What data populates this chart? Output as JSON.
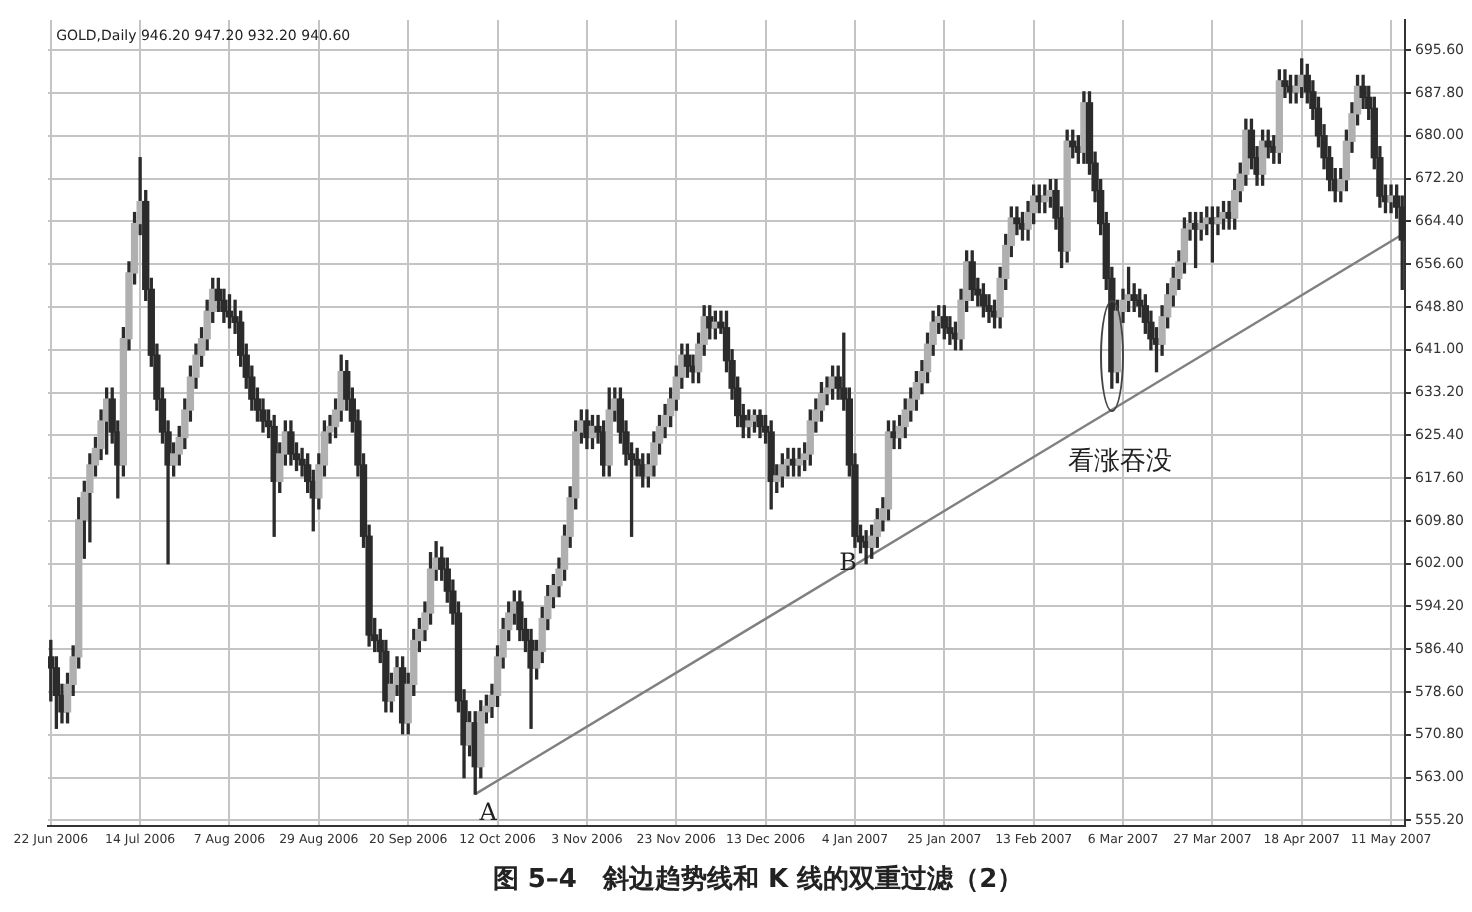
{
  "chart_data": {
    "type": "candlestick",
    "title": "图 5–4　斜边趋势线和 K 线的双重过滤（2）",
    "annotations": [
      "GOLD,Daily 946.20 947.20 932.20 940.60",
      "A",
      "B",
      "看涨吞没"
    ],
    "color": "#2b2b2b",
    "grid": true,
    "colors": [
      "#2b2b2b",
      "#2b2b2b",
      "#2b2b2b",
      "#b0b0b0",
      "#b0b0b0",
      "#b0b0b0",
      "#b0b0b0",
      "#b0b0b0",
      "#b0b0b0",
      "#b0b0b0",
      "#b0b0b0",
      "#2b2b2b",
      "#2b2b2b",
      "#b0b0b0",
      "#b0b0b0",
      "#b0b0b0",
      "#b0b0b0",
      "#2b2b2b",
      "#2b2b2b",
      "#2b2b2b",
      "#2b2b2b",
      "#2b2b2b",
      "#b0b0b0",
      "#b0b0b0",
      "#b0b0b0",
      "#b0b0b0",
      "#b0b0b0",
      "#b0b0b0",
      "#b0b0b0",
      "#b0b0b0",
      "#2b2b2b",
      "#2b2b2b",
      "#2b2b2b",
      "#2b2b2b",
      "#2b2b2b",
      "#2b2b2b",
      "#2b2b2b",
      "#2b2b2b",
      "#2b2b2b",
      "#2b2b2b",
      "#2b2b2b",
      "#b0b0b0",
      "#b0b0b0",
      "#2b2b2b",
      "#2b2b2b",
      "#2b2b2b",
      "#2b2b2b",
      "#2b2b2b",
      "#b0b0b0",
      "#b0b0b0",
      "#b0b0b0",
      "#b0b0b0",
      "#b0b0b0",
      "#2b2b2b",
      "#2b2b2b",
      "#2b2b2b",
      "#2b2b2b",
      "#2b2b2b",
      "#2b2b2b",
      "#2b2b2b",
      "#2b2b2b",
      "#b0b0b0",
      "#b0b0b0",
      "#2b2b2b",
      "#b0b0b0",
      "#b0b0b0",
      "#b0b0b0",
      "#b0b0b0",
      "#b0b0b0",
      "#b0b0b0",
      "#2b2b2b",
      "#2b2b2b",
      "#2b2b2b",
      "#2b2b2b",
      "#2b2b2b",
      "#b0b0b0",
      "#2b2b2b",
      "#b0b0b0",
      "#b0b0b0",
      "#b0b0b0",
      "#b0b0b0",
      "#b0b0b0",
      "#b0b0b0",
      "#b0b0b0",
      "#2b2b2b",
      "#2b2b2b",
      "#2b2b2b",
      "#b0b0b0",
      "#b0b0b0",
      "#b0b0b0",
      "#b0b0b0",
      "#b0b0b0",
      "#b0b0b0",
      "#b0b0b0",
      "#b0b0b0",
      "#b0b0b0",
      "#2b2b2b",
      "#b0b0b0",
      "#2b2b2b",
      "#2b2b2b",
      "#b0b0b0",
      "#b0b0b0",
      "#2b2b2b",
      "#2b2b2b",
      "#2b2b2b",
      "#2b2b2b",
      "#2b2b2b",
      "#b0b0b0",
      "#b0b0b0",
      "#b0b0b0",
      "#b0b0b0",
      "#b0b0b0",
      "#b0b0b0",
      "#b0b0b0",
      "#2b2b2b",
      "#2b2b2b",
      "#b0b0b0",
      "#b0b0b0",
      "#2b2b2b",
      "#b0b0b0",
      "#2b2b2b",
      "#2b2b2b",
      "#2b2b2b",
      "#2b2b2b",
      "#2b2b2b",
      "#b0b0b0",
      "#b0b0b0",
      "#2b2b2b",
      "#2b2b2b",
      "#2b2b2b",
      "#b0b0b0",
      "#b0b0b0",
      "#b0b0b0",
      "#2b2b2b",
      "#b0b0b0",
      "#b0b0b0",
      "#b0b0b0",
      "#b0b0b0",
      "#b0b0b0",
      "#b0b0b0",
      "#b0b0b0",
      "#2b2b2b",
      "#2b2b2b",
      "#2b2b2b",
      "#2b2b2b",
      "#2b2b2b",
      "#2b2b2b",
      "#b0b0b0",
      "#b0b0b0",
      "#b0b0b0",
      "#b0b0b0",
      "#2b2b2b",
      "#b0b0b0",
      "#b0b0b0",
      "#b0b0b0",
      "#b0b0b0",
      "#b0b0b0",
      "#b0b0b0",
      "#b0b0b0",
      "#b0b0b0",
      "#2b2b2b",
      "#2b2b2b",
      "#2b2b2b",
      "#b0b0b0",
      "#b0b0b0",
      "#2b2b2b",
      "#2b2b2b",
      "#2b2b2b",
      "#2b2b2b",
      "#2b2b2b",
      "#b0b0b0",
      "#b0b0b0",
      "#b0b0b0",
      "#2b2b2b",
      "#2b2b2b",
      "#b0b0b0",
      "#b0b0b0",
      "#2b2b2b",
      "#b0b0b0",
      "#b0b0b0",
      "#2b2b2b",
      "#2b2b2b",
      "#b0b0b0",
      "#2b2b2b",
      "#2b2b2b",
      "#b0b0b0",
      "#2b2b2b",
      "#2b2b2b",
      "#2b2b2b",
      "#2b2b2b",
      "#2b2b2b",
      "#b0b0b0",
      "#b0b0b0",
      "#b0b0b0",
      "#2b2b2b",
      "#2b2b2b",
      "#2b2b2b",
      "#2b2b2b",
      "#2b2b2b",
      "#b0b0b0",
      "#b0b0b0",
      "#b0b0b0",
      "#b0b0b0",
      "#b0b0b0",
      "#b0b0b0",
      "#2b2b2b",
      "#b0b0b0",
      "#b0b0b0",
      "#2b2b2b",
      "#b0b0b0",
      "#b0b0b0",
      "#2b2b2b",
      "#b0b0b0",
      "#b0b0b0",
      "#b0b0b0",
      "#2b2b2b",
      "#2b2b2b",
      "#b0b0b0",
      "#2b2b2b",
      "#2b2b2b",
      "#b0b0b0",
      "#2b2b2b",
      "#2b2b2b",
      "#b0b0b0",
      "#b0b0b0",
      "#2b2b2b",
      "#2b2b2b",
      "#2b2b2b",
      "#2b2b2b",
      "#2b2b2b",
      "#2b2b2b",
      "#b0b0b0",
      "#b0b0b0",
      "#b0b0b0",
      "#b0b0b0",
      "#2b2b2b",
      "#2b2b2b",
      "#2b2b2b",
      "#2b2b2b",
      "#2b2b2b",
      "#b0b0b0",
      "#2b2b2b",
      "#2b2b2b"
    ],
    "ylim": [
      554.2,
      701.1
    ],
    "yticks": [
      {
        "value": 555.2,
        "label": "555.20"
      },
      {
        "value": 563,
        "label": "563.00"
      },
      {
        "value": 570.8,
        "label": "570.80"
      },
      {
        "value": 578.6,
        "label": "578.60"
      },
      {
        "value": 586.4,
        "label": "586.40"
      },
      {
        "value": 594.2,
        "label": "594.20"
      },
      {
        "value": 602,
        "label": "602.00"
      },
      {
        "value": 609.8,
        "label": "609.80"
      },
      {
        "value": 617.6,
        "label": "617.60"
      },
      {
        "value": 625.4,
        "label": "625.40"
      },
      {
        "value": 633.2,
        "label": "633.20"
      },
      {
        "value": 641,
        "label": "641.00"
      },
      {
        "value": 648.8,
        "label": "648.80"
      },
      {
        "value": 656.6,
        "label": "656.60"
      },
      {
        "value": 664.4,
        "label": "664.40"
      },
      {
        "value": 672.2,
        "label": "672.20"
      },
      {
        "value": 680,
        "label": "680.00"
      },
      {
        "value": 687.8,
        "label": "687.80"
      },
      {
        "value": 695.6,
        "label": "695.60"
      }
    ],
    "categories": [
      "22 Jun 2006",
      null,
      null,
      null,
      null,
      null,
      null,
      null,
      null,
      null,
      null,
      null,
      null,
      null,
      null,
      null,
      "14 Jul 2006",
      null,
      null,
      null,
      null,
      null,
      null,
      null,
      null,
      null,
      null,
      null,
      null,
      null,
      null,
      null,
      "7 Aug 2006",
      null,
      null,
      null,
      null,
      null,
      null,
      null,
      null,
      null,
      null,
      null,
      null,
      null,
      null,
      null,
      "29 Aug 2006",
      null,
      null,
      null,
      null,
      null,
      null,
      null,
      null,
      null,
      null,
      null,
      null,
      null,
      null,
      null,
      "20 Sep 2006",
      null,
      null,
      null,
      null,
      null,
      null,
      null,
      null,
      null,
      null,
      null,
      null,
      null,
      null,
      null,
      "12 Oct 2006",
      null,
      null,
      null,
      null,
      null,
      null,
      null,
      null,
      null,
      null,
      null,
      null,
      null,
      null,
      null,
      "3 Nov 2006",
      null,
      null,
      null,
      null,
      null,
      null,
      null,
      null,
      null,
      null,
      null,
      null,
      null,
      null,
      null,
      "23 Nov 2006",
      null,
      null,
      null,
      null,
      null,
      null,
      null,
      null,
      null,
      null,
      null,
      null,
      null,
      null,
      null,
      "13 Dec 2006",
      null,
      null,
      null,
      null,
      null,
      null,
      null,
      null,
      null,
      null,
      null,
      null,
      null,
      null,
      null,
      "4 Jan 2007",
      null,
      null,
      null,
      null,
      null,
      null,
      null,
      null,
      null,
      null,
      null,
      null,
      null,
      null,
      null,
      "25 Jan 2007",
      null,
      null,
      null,
      null,
      null,
      null,
      null,
      null,
      null,
      null,
      null,
      null,
      null,
      null,
      null,
      "13 Feb 2007",
      null,
      null,
      null,
      null,
      null,
      null,
      null,
      null,
      null,
      null,
      null,
      null,
      null,
      null,
      null,
      "6 Mar 2007",
      null,
      null,
      null,
      null,
      null,
      null,
      null,
      null,
      null,
      null,
      null,
      null,
      null,
      null,
      null,
      "27 Mar 2007",
      null,
      null,
      null,
      null,
      null,
      null,
      null,
      null,
      null,
      null,
      null,
      null,
      null,
      null,
      null,
      "18 Apr 2007",
      null,
      null,
      null,
      null,
      null,
      null,
      null,
      null,
      null,
      null,
      null,
      null,
      null,
      null,
      null,
      "11 May 2007",
      null,
      null
    ],
    "ohlc": [
      [
        585,
        588,
        577,
        583
      ],
      [
        583,
        585,
        572,
        578
      ],
      [
        578,
        580,
        573,
        575
      ],
      [
        575,
        582,
        573,
        580
      ],
      [
        580,
        587,
        578,
        585
      ],
      [
        585,
        614,
        583,
        610
      ],
      [
        610,
        617,
        603,
        615
      ],
      [
        615,
        622,
        606,
        620
      ],
      [
        620,
        625,
        618,
        623
      ],
      [
        623,
        630,
        621,
        628
      ],
      [
        628,
        634,
        622,
        632
      ],
      [
        632,
        634,
        624,
        626
      ],
      [
        626,
        628,
        614,
        620
      ],
      [
        620,
        645,
        618,
        643
      ],
      [
        643,
        657,
        641,
        655
      ],
      [
        655,
        666,
        653,
        664
      ],
      [
        664,
        676,
        662,
        668
      ],
      [
        668,
        670,
        650,
        652
      ],
      [
        652,
        654,
        638,
        640
      ],
      [
        640,
        642,
        630,
        632
      ],
      [
        632,
        634,
        624,
        626
      ],
      [
        626,
        628,
        602,
        620
      ],
      [
        620,
        624,
        618,
        622
      ],
      [
        622,
        627,
        620,
        625
      ],
      [
        625,
        632,
        623,
        630
      ],
      [
        630,
        638,
        628,
        636
      ],
      [
        636,
        642,
        634,
        640
      ],
      [
        640,
        645,
        638,
        643
      ],
      [
        643,
        650,
        641,
        648
      ],
      [
        648,
        654,
        646,
        652
      ],
      [
        652,
        654,
        648,
        650
      ],
      [
        650,
        652,
        646,
        648
      ],
      [
        648,
        651,
        645,
        647
      ],
      [
        647,
        650,
        644,
        646
      ],
      [
        646,
        648,
        638,
        640
      ],
      [
        640,
        642,
        634,
        636
      ],
      [
        636,
        638,
        630,
        632
      ],
      [
        632,
        634,
        628,
        630
      ],
      [
        630,
        632,
        626,
        628
      ],
      [
        628,
        630,
        625,
        627
      ],
      [
        627,
        629,
        607,
        617
      ],
      [
        617,
        624,
        615,
        622
      ],
      [
        622,
        628,
        620,
        626
      ],
      [
        626,
        628,
        620,
        622
      ],
      [
        622,
        624,
        619,
        621
      ],
      [
        621,
        623,
        618,
        620
      ],
      [
        620,
        622,
        615,
        617
      ],
      [
        617,
        619,
        608,
        614
      ],
      [
        614,
        622,
        612,
        620
      ],
      [
        620,
        628,
        618,
        626
      ],
      [
        626,
        629,
        624,
        627
      ],
      [
        627,
        632,
        625,
        630
      ],
      [
        630,
        640,
        628,
        637
      ],
      [
        637,
        639,
        630,
        632
      ],
      [
        632,
        634,
        626,
        628
      ],
      [
        628,
        630,
        618,
        620
      ],
      [
        620,
        622,
        605,
        607
      ],
      [
        607,
        609,
        587,
        589
      ],
      [
        589,
        592,
        586,
        588
      ],
      [
        588,
        590,
        584,
        586
      ],
      [
        586,
        588,
        575,
        577
      ],
      [
        577,
        582,
        575,
        580
      ],
      [
        580,
        585,
        578,
        583
      ],
      [
        583,
        585,
        571,
        573
      ],
      [
        573,
        582,
        571,
        580
      ],
      [
        580,
        590,
        578,
        588
      ],
      [
        588,
        592,
        586,
        590
      ],
      [
        590,
        595,
        588,
        593
      ],
      [
        593,
        604,
        591,
        601
      ],
      [
        601,
        606,
        599,
        603
      ],
      [
        603,
        605,
        599,
        601
      ],
      [
        601,
        603,
        595,
        597
      ],
      [
        597,
        599,
        591,
        593
      ],
      [
        593,
        595,
        575,
        577
      ],
      [
        577,
        579,
        563,
        569
      ],
      [
        569,
        575,
        567,
        573
      ],
      [
        573,
        575,
        560,
        565
      ],
      [
        565,
        577,
        563,
        575
      ],
      [
        575,
        578,
        573,
        576
      ],
      [
        576,
        580,
        574,
        578
      ],
      [
        578,
        587,
        576,
        585
      ],
      [
        585,
        592,
        583,
        590
      ],
      [
        590,
        595,
        588,
        593
      ],
      [
        593,
        597,
        591,
        595
      ],
      [
        595,
        597,
        588,
        590
      ],
      [
        590,
        592,
        586,
        588
      ],
      [
        588,
        590,
        572,
        583
      ],
      [
        583,
        588,
        581,
        586
      ],
      [
        586,
        594,
        584,
        592
      ],
      [
        592,
        598,
        590,
        596
      ],
      [
        596,
        600,
        594,
        598
      ],
      [
        598,
        603,
        596,
        601
      ],
      [
        601,
        609,
        599,
        607
      ],
      [
        607,
        616,
        605,
        614
      ],
      [
        614,
        628,
        612,
        626
      ],
      [
        626,
        630,
        624,
        628
      ],
      [
        628,
        630,
        623,
        625
      ],
      [
        625,
        629,
        623,
        627
      ],
      [
        627,
        629,
        624,
        626
      ],
      [
        626,
        628,
        618,
        620
      ],
      [
        620,
        634,
        618,
        630
      ],
      [
        630,
        634,
        628,
        632
      ],
      [
        632,
        634,
        624,
        626
      ],
      [
        626,
        628,
        620,
        622
      ],
      [
        622,
        624,
        607,
        621
      ],
      [
        621,
        623,
        618,
        620
      ],
      [
        620,
        622,
        616,
        618
      ],
      [
        618,
        622,
        616,
        620
      ],
      [
        620,
        626,
        618,
        624
      ],
      [
        624,
        629,
        622,
        627
      ],
      [
        627,
        631,
        625,
        629
      ],
      [
        629,
        634,
        627,
        632
      ],
      [
        632,
        638,
        630,
        636
      ],
      [
        636,
        642,
        634,
        640
      ],
      [
        640,
        642,
        636,
        638
      ],
      [
        638,
        640,
        635,
        637
      ],
      [
        637,
        644,
        635,
        642
      ],
      [
        642,
        649,
        640,
        647
      ],
      [
        647,
        649,
        643,
        645
      ],
      [
        645,
        648,
        643,
        646
      ],
      [
        646,
        648,
        644,
        645
      ],
      [
        645,
        648,
        637,
        639
      ],
      [
        639,
        641,
        632,
        634
      ],
      [
        634,
        636,
        627,
        629
      ],
      [
        629,
        631,
        625,
        627
      ],
      [
        627,
        630,
        625,
        628
      ],
      [
        628,
        630,
        626,
        629
      ],
      [
        629,
        630,
        625,
        627
      ],
      [
        627,
        629,
        624,
        626
      ],
      [
        626,
        628,
        612,
        617
      ],
      [
        617,
        620,
        615,
        618
      ],
      [
        618,
        622,
        616,
        620
      ],
      [
        620,
        623,
        618,
        621
      ],
      [
        621,
        623,
        618,
        620
      ],
      [
        620,
        623,
        618,
        621
      ],
      [
        621,
        624,
        619,
        622
      ],
      [
        622,
        630,
        620,
        628
      ],
      [
        628,
        632,
        626,
        630
      ],
      [
        630,
        635,
        628,
        633
      ],
      [
        633,
        636,
        631,
        634
      ],
      [
        634,
        638,
        632,
        636
      ],
      [
        636,
        638,
        632,
        634
      ],
      [
        634,
        644,
        630,
        632
      ],
      [
        632,
        634,
        618,
        620
      ],
      [
        620,
        622,
        605,
        607
      ],
      [
        607,
        609,
        604,
        606
      ],
      [
        606,
        608,
        602,
        605
      ],
      [
        605,
        609,
        603,
        607
      ],
      [
        607,
        612,
        605,
        610
      ],
      [
        610,
        614,
        608,
        612
      ],
      [
        612,
        628,
        610,
        626
      ],
      [
        626,
        628,
        623,
        625
      ],
      [
        625,
        629,
        623,
        627
      ],
      [
        627,
        632,
        625,
        630
      ],
      [
        630,
        634,
        628,
        632
      ],
      [
        632,
        637,
        630,
        635
      ],
      [
        635,
        639,
        633,
        637
      ],
      [
        637,
        644,
        635,
        642
      ],
      [
        642,
        648,
        640,
        646
      ],
      [
        646,
        649,
        644,
        647
      ],
      [
        647,
        649,
        643,
        645
      ],
      [
        645,
        647,
        642,
        644
      ],
      [
        644,
        646,
        641,
        643
      ],
      [
        643,
        652,
        641,
        650
      ],
      [
        650,
        659,
        648,
        657
      ],
      [
        657,
        659,
        650,
        652
      ],
      [
        652,
        654,
        649,
        651
      ],
      [
        651,
        653,
        647,
        649
      ],
      [
        649,
        651,
        646,
        648
      ],
      [
        648,
        650,
        645,
        647
      ],
      [
        647,
        656,
        645,
        654
      ],
      [
        654,
        662,
        652,
        660
      ],
      [
        660,
        667,
        658,
        665
      ],
      [
        665,
        667,
        662,
        664
      ],
      [
        664,
        666,
        661,
        663
      ],
      [
        663,
        668,
        661,
        666
      ],
      [
        666,
        671,
        664,
        669
      ],
      [
        669,
        671,
        666,
        668
      ],
      [
        668,
        671,
        666,
        669
      ],
      [
        669,
        672,
        667,
        670
      ],
      [
        670,
        672,
        663,
        665
      ],
      [
        665,
        667,
        656,
        659
      ],
      [
        659,
        681,
        657,
        679
      ],
      [
        679,
        681,
        676,
        678
      ],
      [
        678,
        680,
        675,
        677
      ],
      [
        677,
        688,
        675,
        686
      ],
      [
        686,
        688,
        673,
        675
      ],
      [
        675,
        677,
        668,
        670
      ],
      [
        670,
        672,
        662,
        664
      ],
      [
        664,
        666,
        652,
        654
      ],
      [
        654,
        656,
        634,
        637
      ],
      [
        637,
        650,
        635,
        648
      ],
      [
        648,
        652,
        646,
        650
      ],
      [
        650,
        656,
        648,
        651
      ],
      [
        651,
        653,
        648,
        650
      ],
      [
        650,
        652,
        647,
        649
      ],
      [
        649,
        651,
        644,
        646
      ],
      [
        646,
        648,
        641,
        643
      ],
      [
        643,
        645,
        637,
        642
      ],
      [
        642,
        649,
        640,
        647
      ],
      [
        647,
        653,
        645,
        651
      ],
      [
        651,
        656,
        649,
        654
      ],
      [
        654,
        659,
        652,
        657
      ],
      [
        657,
        665,
        655,
        663
      ],
      [
        663,
        666,
        661,
        664
      ],
      [
        664,
        666,
        656,
        663
      ],
      [
        663,
        666,
        661,
        664
      ],
      [
        664,
        667,
        662,
        665
      ],
      [
        665,
        667,
        657,
        664
      ],
      [
        664,
        667,
        662,
        665
      ],
      [
        665,
        668,
        663,
        666
      ],
      [
        666,
        668,
        663,
        665
      ],
      [
        665,
        672,
        663,
        670
      ],
      [
        670,
        675,
        668,
        673
      ],
      [
        673,
        683,
        671,
        681
      ],
      [
        681,
        683,
        674,
        676
      ],
      [
        676,
        678,
        671,
        673
      ],
      [
        673,
        681,
        671,
        679
      ],
      [
        679,
        681,
        676,
        678
      ],
      [
        678,
        680,
        675,
        677
      ],
      [
        677,
        692,
        675,
        690
      ],
      [
        690,
        692,
        687,
        689
      ],
      [
        689,
        691,
        686,
        688
      ],
      [
        688,
        691,
        686,
        689
      ],
      [
        689,
        694,
        687,
        691
      ],
      [
        691,
        693,
        686,
        688
      ],
      [
        688,
        690,
        683,
        685
      ],
      [
        685,
        687,
        678,
        680
      ],
      [
        680,
        682,
        674,
        676
      ],
      [
        676,
        678,
        670,
        672
      ],
      [
        672,
        674,
        668,
        670
      ],
      [
        670,
        674,
        668,
        672
      ],
      [
        672,
        681,
        670,
        679
      ],
      [
        679,
        686,
        677,
        684
      ],
      [
        684,
        691,
        682,
        689
      ],
      [
        689,
        691,
        685,
        687
      ],
      [
        687,
        689,
        683,
        685
      ],
      [
        685,
        687,
        674,
        676
      ],
      [
        676,
        678,
        667,
        669
      ],
      [
        669,
        671,
        666,
        668
      ],
      [
        668,
        671,
        666,
        669
      ],
      [
        669,
        671,
        665,
        667
      ],
      [
        667,
        669,
        652,
        661
      ]
    ],
    "series": [
      {
        "type": "line",
        "color": "#808080",
        "marker": "none",
        "values": [
          null,
          null,
          null,
          null,
          null,
          null,
          null,
          null,
          null,
          null,
          null,
          null,
          null,
          null,
          null,
          null,
          null,
          null,
          null,
          null,
          null,
          null,
          null,
          null,
          null,
          null,
          null,
          null,
          null,
          null,
          null,
          null,
          null,
          null,
          null,
          null,
          null,
          null,
          null,
          null,
          null,
          null,
          null,
          null,
          null,
          null,
          null,
          null,
          null,
          null,
          null,
          null,
          null,
          null,
          null,
          null,
          null,
          null,
          null,
          null,
          null,
          null,
          null,
          null,
          null,
          null,
          null,
          null,
          null,
          null,
          null,
          null,
          null,
          null,
          null,
          null,
          560,
          null,
          null,
          null,
          null,
          null,
          null,
          null,
          null,
          null,
          null,
          null,
          null,
          null,
          null,
          null,
          null,
          null,
          null,
          null,
          null,
          null,
          null,
          null,
          null,
          null,
          null,
          null,
          null,
          null,
          null,
          null,
          null,
          null,
          null,
          null,
          null,
          null,
          null,
          null,
          null,
          null,
          null,
          null,
          null,
          null,
          null,
          null,
          null,
          null,
          null,
          null,
          null,
          null,
          null,
          null,
          null,
          null,
          null,
          null,
          null,
          null,
          null,
          null,
          null,
          null,
          null,
          null,
          null,
          null,
          null,
          null,
          null,
          null,
          null,
          null,
          null,
          null,
          null,
          null,
          null,
          null,
          null,
          null,
          null,
          null,
          null,
          null,
          null,
          null,
          null,
          null,
          null,
          null,
          null,
          null,
          null,
          null,
          null,
          null,
          null,
          null,
          null,
          null,
          null,
          null,
          null,
          null,
          null,
          null,
          null,
          null,
          null,
          null,
          null,
          null,
          null,
          null,
          null,
          null,
          null,
          null,
          null,
          null,
          null,
          null,
          null,
          null,
          null,
          null,
          null,
          null,
          null,
          null,
          null,
          null,
          null,
          null,
          null,
          null,
          null,
          null,
          null,
          null,
          null,
          null,
          null,
          null,
          null,
          null,
          null,
          null,
          null,
          null,
          null,
          null,
          null,
          null,
          null,
          null,
          null,
          null,
          null,
          null,
          null,
          null,
          662
        ]
      }
    ]
  }
}
